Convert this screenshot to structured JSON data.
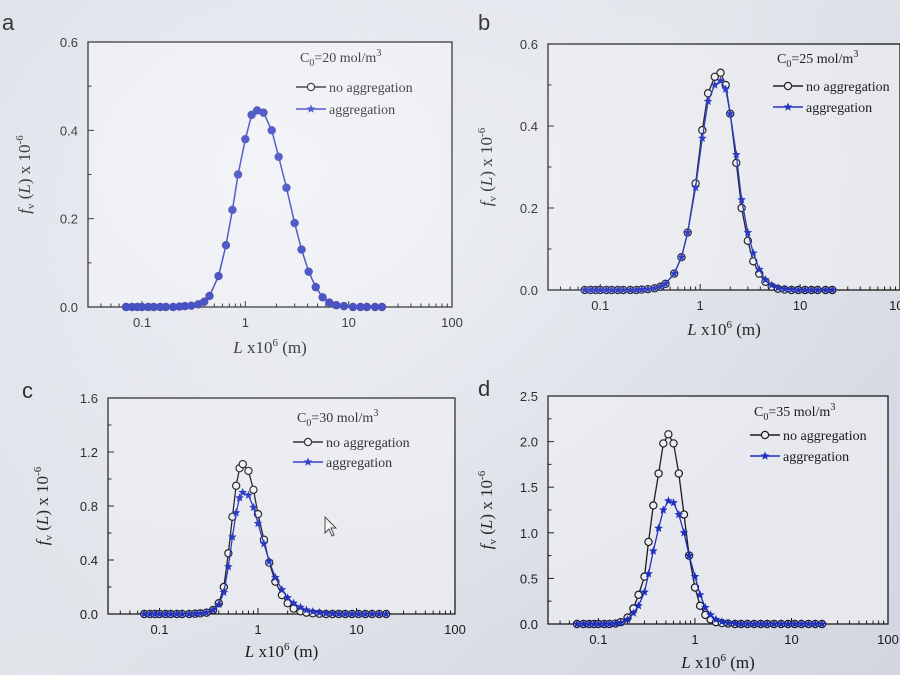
{
  "chart_data": [
    {
      "panel_label": "a",
      "type": "line",
      "xscale": "log",
      "xlim": [
        0.03,
        100
      ],
      "ylim": [
        0,
        0.6
      ],
      "xticks": [
        "0.1",
        "1",
        "10",
        "100"
      ],
      "yticks": [
        "0.0",
        "0.2",
        "0.4",
        "0.6"
      ],
      "xlabel": "L x10^6 (m)",
      "ylabel": "f_v (L) x 10^-6",
      "annotation": "C0=20 mol/m3",
      "legend_position": "top-right",
      "series": [
        {
          "name": "no aggregation",
          "marker": "circle",
          "x": [
            0.07,
            0.08,
            0.09,
            0.1,
            0.115,
            0.13,
            0.15,
            0.17,
            0.2,
            0.23,
            0.26,
            0.3,
            0.35,
            0.4,
            0.45,
            0.55,
            0.65,
            0.75,
            0.85,
            1.0,
            1.15,
            1.3,
            1.5,
            1.8,
            2.1,
            2.5,
            3.0,
            3.5,
            4.1,
            4.8,
            5.6,
            6.5,
            7.6,
            9.0,
            11,
            13,
            15,
            18,
            21
          ],
          "y": [
            0.0,
            0.0,
            0.0,
            0.0,
            0.0,
            0.0,
            0.0,
            0.0,
            0.0,
            0.001,
            0.002,
            0.003,
            0.006,
            0.012,
            0.025,
            0.07,
            0.14,
            0.22,
            0.3,
            0.38,
            0.435,
            0.445,
            0.44,
            0.4,
            0.34,
            0.27,
            0.19,
            0.13,
            0.08,
            0.045,
            0.022,
            0.01,
            0.004,
            0.002,
            0.0,
            0.0,
            0.0,
            0.0,
            0.0
          ]
        },
        {
          "name": "aggregation",
          "marker": "star",
          "x": [
            0.07,
            0.08,
            0.09,
            0.1,
            0.115,
            0.13,
            0.15,
            0.17,
            0.2,
            0.23,
            0.26,
            0.3,
            0.35,
            0.4,
            0.45,
            0.55,
            0.65,
            0.75,
            0.85,
            1.0,
            1.15,
            1.3,
            1.5,
            1.8,
            2.1,
            2.5,
            3.0,
            3.5,
            4.1,
            4.8,
            5.6,
            6.5,
            7.6,
            9.0,
            11,
            13,
            15,
            18,
            21
          ],
          "y": [
            0.0,
            0.0,
            0.0,
            0.0,
            0.0,
            0.0,
            0.0,
            0.0,
            0.0,
            0.001,
            0.002,
            0.003,
            0.006,
            0.012,
            0.025,
            0.07,
            0.14,
            0.22,
            0.3,
            0.38,
            0.435,
            0.445,
            0.44,
            0.4,
            0.34,
            0.27,
            0.19,
            0.13,
            0.08,
            0.045,
            0.022,
            0.01,
            0.004,
            0.002,
            0.0,
            0.0,
            0.0,
            0.0,
            0.0
          ]
        }
      ]
    },
    {
      "panel_label": "b",
      "type": "line",
      "xscale": "log",
      "xlim": [
        0.03,
        100
      ],
      "ylim": [
        0,
        0.6
      ],
      "xticks": [
        "0.1",
        "1",
        "10",
        "100"
      ],
      "yticks": [
        "0.0",
        "0.2",
        "0.4",
        "0.6"
      ],
      "xlabel": "L x10^6 (m)",
      "ylabel": "f_v (L) x 10^-6",
      "annotation": "C0=25 mol/m3",
      "legend_position": "top-right",
      "series": [
        {
          "name": "no aggregation",
          "marker": "circle",
          "x": [
            0.07,
            0.08,
            0.09,
            0.1,
            0.115,
            0.13,
            0.15,
            0.17,
            0.2,
            0.23,
            0.26,
            0.3,
            0.35,
            0.4,
            0.45,
            0.55,
            0.65,
            0.75,
            0.9,
            1.05,
            1.2,
            1.4,
            1.6,
            1.8,
            2.0,
            2.3,
            2.6,
            3.0,
            3.4,
            3.9,
            4.5,
            5.2,
            6.0,
            7.0,
            8.2,
            9.6,
            11.2,
            13,
            15,
            18,
            21
          ],
          "y": [
            0.0,
            0.0,
            0.0,
            0.0,
            0.0,
            0.0,
            0.0,
            0.0,
            0.0,
            0.0,
            0.001,
            0.002,
            0.004,
            0.008,
            0.015,
            0.04,
            0.08,
            0.14,
            0.26,
            0.39,
            0.48,
            0.52,
            0.53,
            0.5,
            0.43,
            0.31,
            0.2,
            0.12,
            0.07,
            0.04,
            0.02,
            0.008,
            0.003,
            0.001,
            0.0,
            0.0,
            0.0,
            0.0,
            0.0,
            0.0,
            0.0
          ]
        },
        {
          "name": "aggregation",
          "marker": "star",
          "x": [
            0.07,
            0.08,
            0.09,
            0.1,
            0.115,
            0.13,
            0.15,
            0.17,
            0.2,
            0.23,
            0.26,
            0.3,
            0.35,
            0.4,
            0.45,
            0.55,
            0.65,
            0.75,
            0.9,
            1.05,
            1.2,
            1.4,
            1.6,
            1.8,
            2.0,
            2.3,
            2.6,
            3.0,
            3.4,
            3.9,
            4.5,
            5.2,
            6.0,
            7.0,
            8.2,
            9.6,
            11.2,
            13,
            15,
            18,
            21
          ],
          "y": [
            0.0,
            0.0,
            0.0,
            0.0,
            0.0,
            0.0,
            0.0,
            0.0,
            0.0,
            0.0,
            0.001,
            0.002,
            0.004,
            0.008,
            0.015,
            0.04,
            0.08,
            0.14,
            0.25,
            0.37,
            0.46,
            0.5,
            0.51,
            0.49,
            0.43,
            0.33,
            0.22,
            0.14,
            0.09,
            0.05,
            0.025,
            0.012,
            0.005,
            0.002,
            0.001,
            0.0,
            0.0,
            0.0,
            0.0,
            0.0,
            0.0
          ]
        }
      ]
    },
    {
      "panel_label": "c",
      "type": "line",
      "xscale": "log",
      "xlim": [
        0.03,
        100
      ],
      "ylim": [
        0,
        1.6
      ],
      "xticks": [
        "0.1",
        "1",
        "10",
        "100"
      ],
      "yticks": [
        "0.0",
        "0.4",
        "0.8",
        "1.2",
        "1.6"
      ],
      "xlabel": "L x10^6 (m)",
      "ylabel": "f_v (L) x 10^-6",
      "annotation": "C0=30 mol/m3",
      "legend_position": "top-right",
      "series": [
        {
          "name": "no aggregation",
          "marker": "circle",
          "x": [
            0.07,
            0.08,
            0.09,
            0.1,
            0.115,
            0.13,
            0.15,
            0.17,
            0.2,
            0.23,
            0.26,
            0.3,
            0.35,
            0.4,
            0.45,
            0.5,
            0.55,
            0.6,
            0.65,
            0.7,
            0.8,
            0.9,
            1.0,
            1.15,
            1.3,
            1.5,
            1.75,
            2.0,
            2.3,
            2.7,
            3.1,
            3.6,
            4.2,
            4.9,
            5.7,
            6.6,
            7.7,
            9.0,
            10.5,
            12.3,
            14.4,
            17,
            20
          ],
          "y": [
            0.0,
            0.0,
            0.0,
            0.0,
            0.0,
            0.0,
            0.0,
            0.0,
            0.0,
            0.002,
            0.005,
            0.01,
            0.03,
            0.08,
            0.2,
            0.45,
            0.72,
            0.95,
            1.08,
            1.11,
            1.06,
            0.92,
            0.74,
            0.55,
            0.38,
            0.24,
            0.14,
            0.08,
            0.04,
            0.02,
            0.01,
            0.005,
            0.002,
            0.0,
            0.0,
            0.0,
            0.0,
            0.0,
            0.0,
            0.0,
            0.0,
            0.0,
            0.0
          ]
        },
        {
          "name": "aggregation",
          "marker": "star",
          "x": [
            0.07,
            0.08,
            0.09,
            0.1,
            0.115,
            0.13,
            0.15,
            0.17,
            0.2,
            0.23,
            0.26,
            0.3,
            0.35,
            0.4,
            0.45,
            0.5,
            0.55,
            0.6,
            0.65,
            0.7,
            0.8,
            0.9,
            1.0,
            1.15,
            1.3,
            1.5,
            1.75,
            2.0,
            2.3,
            2.7,
            3.1,
            3.6,
            4.2,
            4.9,
            5.7,
            6.6,
            7.7,
            9.0,
            10.5,
            12.3,
            14.4,
            17,
            20
          ],
          "y": [
            0.0,
            0.0,
            0.0,
            0.0,
            0.0,
            0.0,
            0.0,
            0.0,
            0.0,
            0.002,
            0.005,
            0.01,
            0.03,
            0.07,
            0.16,
            0.35,
            0.57,
            0.75,
            0.86,
            0.9,
            0.88,
            0.79,
            0.67,
            0.52,
            0.39,
            0.27,
            0.18,
            0.12,
            0.08,
            0.05,
            0.03,
            0.018,
            0.01,
            0.005,
            0.003,
            0.001,
            0.0,
            0.0,
            0.0,
            0.0,
            0.0,
            0.0,
            0.0
          ]
        }
      ]
    },
    {
      "panel_label": "d",
      "type": "line",
      "xscale": "log",
      "xlim": [
        0.03,
        100
      ],
      "ylim": [
        0,
        2.5
      ],
      "xticks": [
        "0.1",
        "1",
        "10",
        "100"
      ],
      "yticks": [
        "0.0",
        "0.5",
        "1.0",
        "1.5",
        "2.0",
        "2.5"
      ],
      "xlabel": "L x10^6 (m)",
      "ylabel": "f_v (L) x 10^-6",
      "annotation": "C0=35 mol/m3",
      "legend_position": "top-right",
      "series": [
        {
          "name": "no aggregation",
          "marker": "circle",
          "x": [
            0.06,
            0.07,
            0.08,
            0.09,
            0.1,
            0.115,
            0.13,
            0.15,
            0.17,
            0.2,
            0.23,
            0.26,
            0.3,
            0.33,
            0.37,
            0.42,
            0.47,
            0.53,
            0.6,
            0.68,
            0.77,
            0.87,
            1.0,
            1.13,
            1.28,
            1.45,
            1.65,
            1.9,
            2.2,
            2.6,
            3.0,
            3.5,
            4.1,
            4.8,
            5.6,
            6.6,
            7.8,
            9.2,
            10.8,
            12.7,
            15,
            17.6,
            20.7
          ],
          "y": [
            0.0,
            0.0,
            0.0,
            0.0,
            0.0,
            0.0,
            0.0,
            0.005,
            0.02,
            0.07,
            0.17,
            0.32,
            0.52,
            0.9,
            1.3,
            1.65,
            1.98,
            2.08,
            1.98,
            1.65,
            1.2,
            0.75,
            0.4,
            0.2,
            0.1,
            0.05,
            0.02,
            0.01,
            0.005,
            0.0,
            0.0,
            0.0,
            0.0,
            0.0,
            0.0,
            0.0,
            0.0,
            0.0,
            0.0,
            0.0,
            0.0,
            0.0,
            0.0
          ]
        },
        {
          "name": "aggregation",
          "marker": "star",
          "x": [
            0.06,
            0.07,
            0.08,
            0.09,
            0.1,
            0.115,
            0.13,
            0.15,
            0.17,
            0.2,
            0.23,
            0.26,
            0.3,
            0.33,
            0.37,
            0.42,
            0.47,
            0.53,
            0.6,
            0.68,
            0.77,
            0.87,
            1.0,
            1.13,
            1.28,
            1.45,
            1.65,
            1.9,
            2.2,
            2.6,
            3.0,
            3.5,
            4.1,
            4.8,
            5.6,
            6.6,
            7.8,
            9.2,
            10.8,
            12.7,
            15,
            17.6,
            20.7
          ],
          "y": [
            0.0,
            0.0,
            0.0,
            0.0,
            0.0,
            0.0,
            0.0,
            0.004,
            0.015,
            0.05,
            0.12,
            0.2,
            0.35,
            0.55,
            0.8,
            1.05,
            1.25,
            1.35,
            1.33,
            1.2,
            1.0,
            0.75,
            0.52,
            0.32,
            0.18,
            0.1,
            0.05,
            0.025,
            0.01,
            0.005,
            0.0,
            0.0,
            0.0,
            0.0,
            0.0,
            0.0,
            0.0,
            0.0,
            0.0,
            0.0,
            0.0,
            0.0,
            0.0
          ]
        }
      ]
    }
  ],
  "colors": {
    "no_aggregation": "#1a1a1a",
    "aggregation": "#1f2fc4",
    "overlap_fill": "#2d2f9e",
    "axis": "#1a1a1a",
    "plot_background": "#eef0f5"
  }
}
